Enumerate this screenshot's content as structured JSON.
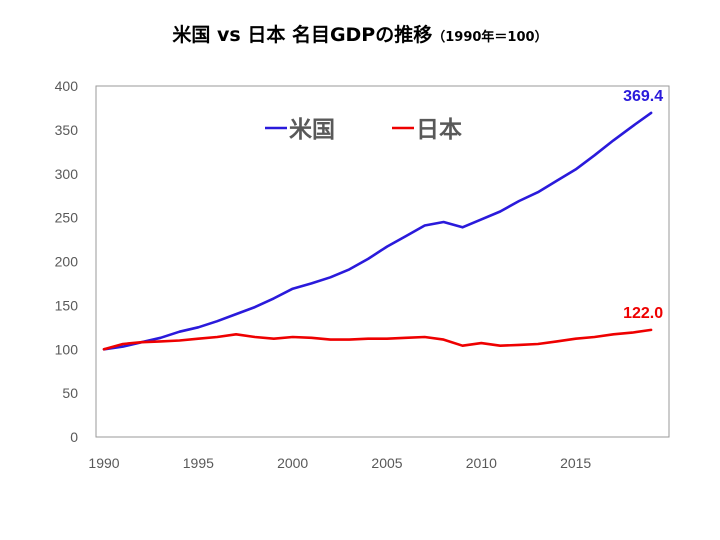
{
  "title": "米国 vs 日本 名目GDPの推移",
  "subtitle": "（1990年＝100）",
  "chart_data": {
    "type": "line",
    "title": "米国 vs 日本 名目GDPの推移",
    "subtitle": "（1990年＝100）",
    "xlabel": "",
    "ylabel": "",
    "xlim": [
      1990,
      2019
    ],
    "ylim": [
      0,
      400
    ],
    "x_ticks": [
      1990,
      1995,
      2000,
      2005,
      2010,
      2015
    ],
    "y_ticks": [
      0,
      50,
      100,
      150,
      200,
      250,
      300,
      350,
      400
    ],
    "grid": false,
    "legend_position": "top-center",
    "x": [
      1990,
      1991,
      1992,
      1993,
      1994,
      1995,
      1996,
      1997,
      1998,
      1999,
      2000,
      2001,
      2002,
      2003,
      2004,
      2005,
      2006,
      2007,
      2008,
      2009,
      2010,
      2011,
      2012,
      2013,
      2014,
      2015,
      2016,
      2017,
      2018,
      2019
    ],
    "series": [
      {
        "name": "米国",
        "color": "#2a1adb",
        "values": [
          100,
          103,
          108,
          113,
          120,
          125,
          132,
          140,
          148,
          158,
          169,
          175,
          182,
          191,
          203,
          217,
          229,
          241,
          245,
          239,
          248,
          257,
          269,
          279,
          292,
          305,
          321,
          338,
          354,
          369.4
        ],
        "end_label": "369.4"
      },
      {
        "name": "日本",
        "color": "#ee0000",
        "values": [
          100,
          106,
          108,
          109,
          110,
          112,
          114,
          117,
          114,
          112,
          114,
          113,
          111,
          111,
          112,
          112,
          113,
          114,
          111,
          104,
          107,
          104,
          105,
          106,
          109,
          112,
          114,
          117,
          119,
          122.0
        ],
        "end_label": "122.0"
      }
    ]
  }
}
